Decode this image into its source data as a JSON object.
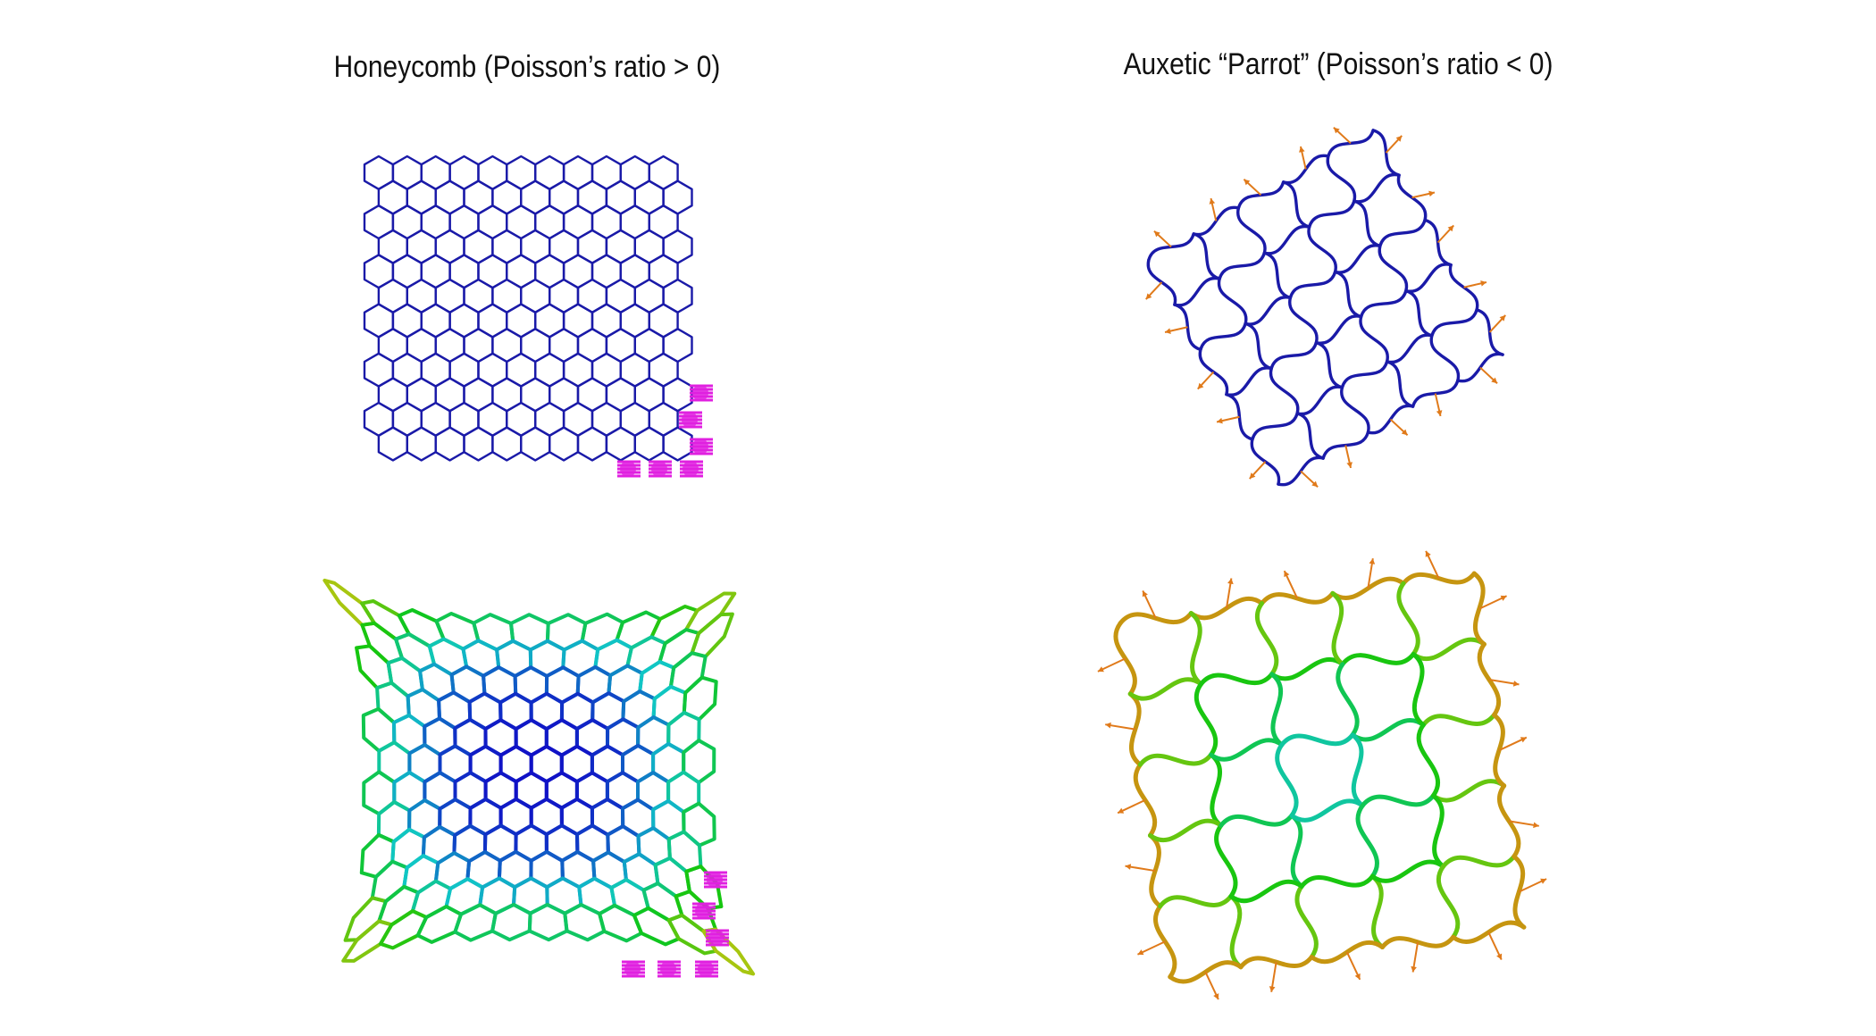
{
  "titles": {
    "left": "Honeycomb (Poisson’s ratio > 0)",
    "right": "Auxetic “Parrot” (Poisson’s ratio < 0)"
  },
  "panels": [
    {
      "id": "honeycomb-undeformed",
      "structure": "honeycomb",
      "state": "undeformed"
    },
    {
      "id": "parrot-undeformed",
      "structure": "auxetic-parrot",
      "state": "undeformed"
    },
    {
      "id": "honeycomb-deformed",
      "structure": "honeycomb",
      "state": "deformed"
    },
    {
      "id": "parrot-deformed",
      "structure": "auxetic-parrot",
      "state": "deformed"
    }
  ],
  "colors": {
    "lattice_undeformed": "#1a1aa8",
    "boundary_fixture": "#e020e0",
    "load_arrow": "#e07a1a",
    "colormap_low": "#1a1ad0",
    "colormap_high": "#d01a1a"
  }
}
